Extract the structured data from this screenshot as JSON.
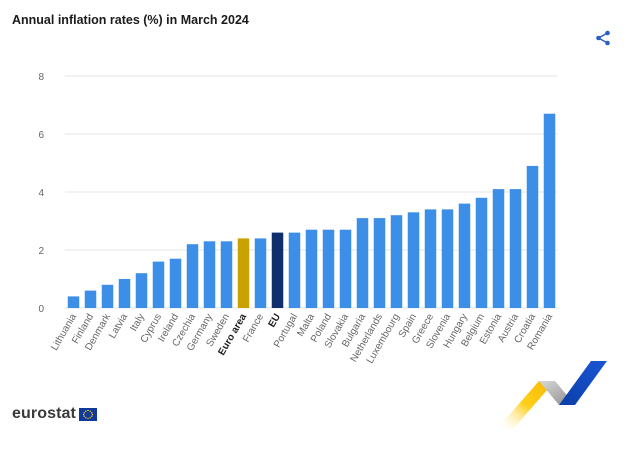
{
  "title": "Annual inflation rates (%) in March 2024",
  "brand": {
    "name": "eurostat"
  },
  "icons": {
    "share": "share-icon",
    "flag": "eu-flag-icon"
  },
  "colors": {
    "bar_default": "#3c8ee6",
    "bar_euro_area": "#c9a200",
    "bar_eu": "#0e2f6b",
    "grid": "#e6e6e6",
    "tick_text": "#666666",
    "share": "#2a5ec9"
  },
  "chart_data": {
    "type": "bar",
    "title": "Annual inflation rates (%) in March 2024",
    "categories": [
      "Lithuania",
      "Finland",
      "Denmark",
      "Latvia",
      "Italy",
      "Cyprus",
      "Ireland",
      "Czechia",
      "Germany",
      "Sweden",
      "Euro area",
      "France",
      "EU",
      "Portugal",
      "Malta",
      "Poland",
      "Slovakia",
      "Bulgaria",
      "Netherlands",
      "Luxembourg",
      "Spain",
      "Greece",
      "Slovenia",
      "Hungary",
      "Belgium",
      "Estonia",
      "Austria",
      "Croatia",
      "Romania"
    ],
    "values": [
      0.4,
      0.6,
      0.8,
      1.0,
      1.2,
      1.6,
      1.7,
      2.2,
      2.3,
      2.3,
      2.4,
      2.4,
      2.6,
      2.6,
      2.7,
      2.7,
      2.7,
      3.1,
      3.1,
      3.2,
      3.3,
      3.4,
      3.4,
      3.6,
      3.8,
      4.1,
      4.1,
      4.9,
      6.7
    ],
    "highlight": {
      "Euro area": "euro_area",
      "EU": "eu"
    },
    "ylim": [
      0,
      8
    ],
    "yticks": [
      0,
      2,
      4,
      6,
      8
    ],
    "grid": true,
    "legend": "none"
  }
}
